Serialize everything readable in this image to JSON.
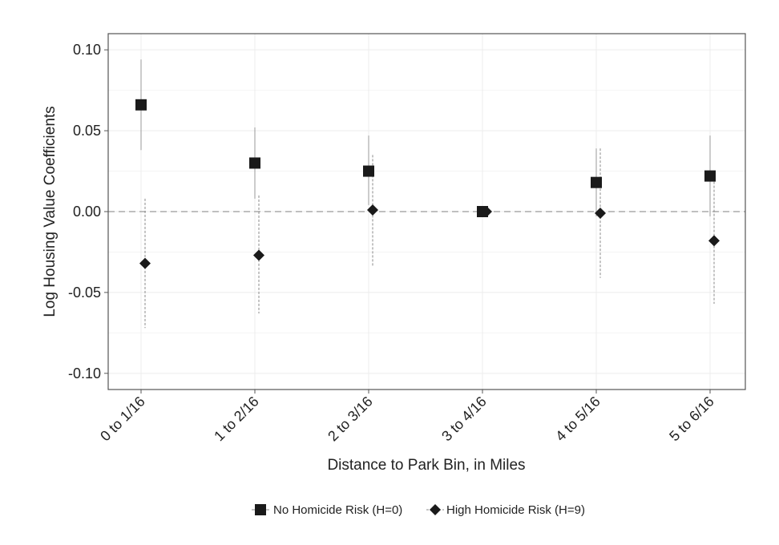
{
  "chart_data": {
    "type": "scatter",
    "title": "",
    "xlabel": "Distance to Park Bin, in Miles",
    "ylabel": "Log Housing Value Coefficients",
    "categories": [
      "0 to 1/16",
      "1 to 2/16",
      "2 to 3/16",
      "3 to 4/16",
      "4 to 5/16",
      "5 to 6/16"
    ],
    "ylim": [
      -0.11,
      0.11
    ],
    "yticks": [
      -0.1,
      -0.05,
      0.0,
      0.05,
      0.1
    ],
    "ytick_labels": [
      "-0.10",
      "-0.05",
      "0.00",
      "0.05",
      "0.10"
    ],
    "grid": true,
    "reference_line": 0,
    "legend_position": "bottom",
    "series": [
      {
        "name": "No Homicide Risk (H=0)",
        "marker": "square",
        "error_bar_style": "solid",
        "values": [
          0.066,
          0.03,
          0.025,
          0.0,
          0.018,
          0.022
        ],
        "lower": [
          0.038,
          0.008,
          0.004,
          0.0,
          -0.003,
          -0.003
        ],
        "upper": [
          0.094,
          0.052,
          0.047,
          0.0,
          0.039,
          0.047
        ]
      },
      {
        "name": "High Homicide Risk (H=9)",
        "marker": "diamond",
        "error_bar_style": "dashed",
        "values": [
          -0.032,
          -0.027,
          0.001,
          0.0,
          -0.001,
          -0.018
        ],
        "lower": [
          -0.072,
          -0.063,
          -0.034,
          0.0,
          -0.041,
          -0.057
        ],
        "upper": [
          0.008,
          0.01,
          0.035,
          0.0,
          0.039,
          0.021
        ]
      }
    ]
  },
  "colors": {
    "marker": "#1a1a1a",
    "grid": "#ececec",
    "reference_line": "#aaaaaa",
    "panel_border": "#555555"
  }
}
